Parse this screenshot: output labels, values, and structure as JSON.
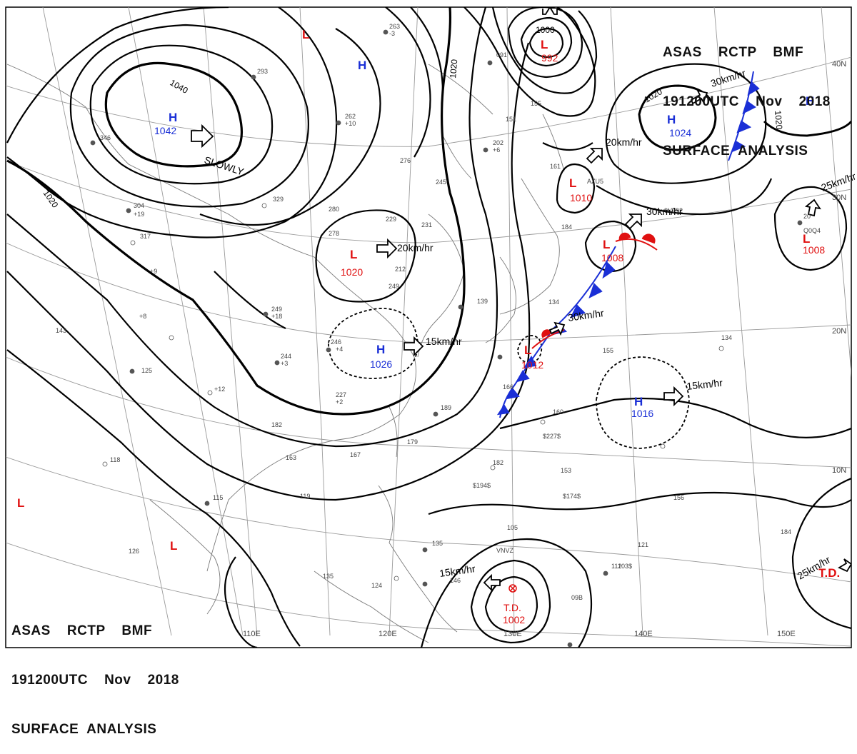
{
  "header_top": {
    "line1": "ASAS    RCTP    BMF",
    "line2": "191200UTC    Nov    2018",
    "line3": "SURFACE  ANALYSIS"
  },
  "header_bottom": {
    "line1": "ASAS    RCTP    BMF",
    "line2": "191200UTC    Nov    2018",
    "line3": "SURFACE  ANALYSIS"
  },
  "longitude_labels": [
    "110E",
    "120E",
    "130E",
    "140E",
    "150E"
  ],
  "latitude_labels": [
    "40N",
    "30N",
    "20N",
    "10N"
  ],
  "isobar_labels": [
    "1040",
    "1020",
    "1020",
    "1000",
    "1020",
    "1020"
  ],
  "pressure_centers": [
    {
      "type": "H",
      "value": "1042"
    },
    {
      "type": "L",
      "value": ""
    },
    {
      "type": "H",
      "value": ""
    },
    {
      "type": "L",
      "value": "992"
    },
    {
      "type": "H",
      "value": "1024"
    },
    {
      "type": "H",
      "value": ""
    },
    {
      "type": "L",
      "value": "1010"
    },
    {
      "type": "L",
      "value": "1008"
    },
    {
      "type": "L",
      "value": "1008"
    },
    {
      "type": "L",
      "value": "1020"
    },
    {
      "type": "H",
      "value": "1026"
    },
    {
      "type": "L",
      "value": "1012"
    },
    {
      "type": "H",
      "value": "1016"
    },
    {
      "type": "L",
      "value": ""
    },
    {
      "type": "L",
      "value": ""
    },
    {
      "type": "T.D.",
      "value": "1002"
    },
    {
      "type": "T.D.",
      "value": ""
    }
  ],
  "movement_labels": [
    "SLOWLY",
    "20km/hr",
    "15km/hr",
    "20km/hr",
    "30km/hr",
    "30km/hr",
    "30km/hr",
    "25km/hr",
    "15km/hr",
    "15km/hr",
    "25km/hr"
  ],
  "colors": {
    "high": "#1a2fd6",
    "low": "#e01010",
    "isobar": "#000000",
    "grid": "#9a9a9a"
  }
}
